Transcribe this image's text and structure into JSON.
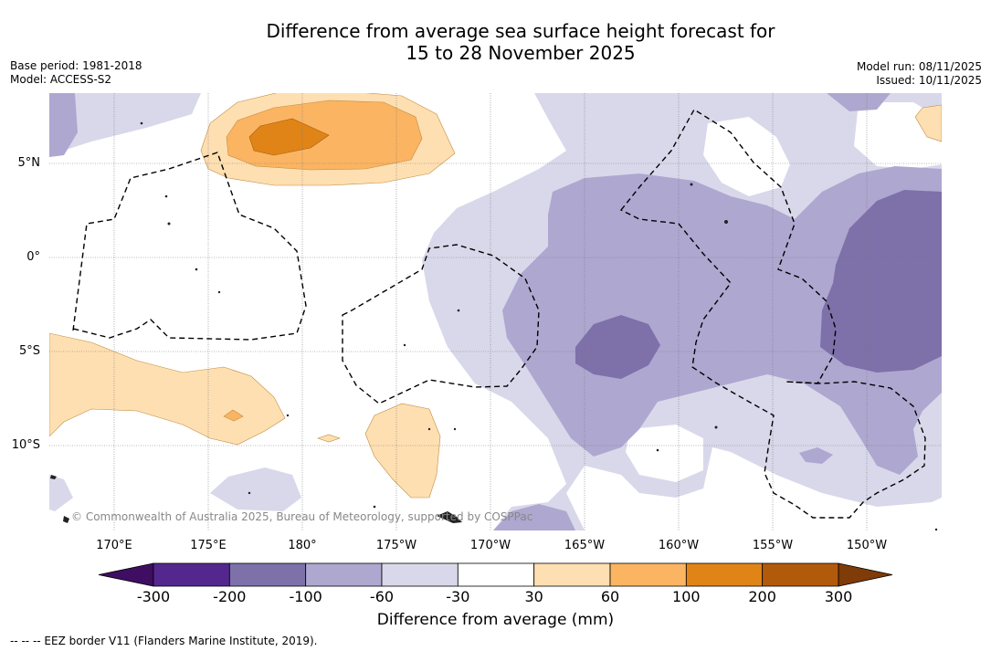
{
  "title": {
    "line1": "Difference from average sea surface height forecast for",
    "line2": "15 to 28 November 2025"
  },
  "meta": {
    "base_period": "Base period: 1981-2018",
    "model": "Model: ACCESS-S2",
    "model_run": "Model run: 08/11/2025",
    "issued": "Issued: 10/11/2025"
  },
  "map": {
    "lat_labels": [
      "5°N",
      "0°",
      "5°S",
      "10°S"
    ],
    "lon_labels": [
      "170°E",
      "175°E",
      "180°",
      "175°W",
      "170°W",
      "165°W",
      "160°W",
      "155°W",
      "150°W"
    ],
    "copyright": "© Commonwealth of Australia 2025, Bureau of Meteorology, supported by COSPPac",
    "eez_line_style": "dashed"
  },
  "colorbar": {
    "ticks": [
      "-300",
      "-200",
      "-100",
      "-60",
      "-30",
      "30",
      "60",
      "100",
      "200",
      "300"
    ],
    "colors": [
      "#3f0e62",
      "#54278f",
      "#7e70a9",
      "#aea7d0",
      "#d8d8ea",
      "#ffffff",
      "#fedfb1",
      "#fbb462",
      "#e08417",
      "#b25a0c",
      "#7f3b08"
    ],
    "label": "Difference from average (mm)"
  },
  "footnote": "--  --  -- EEZ border V11 (Flanders Marine Institute, 2019)."
}
